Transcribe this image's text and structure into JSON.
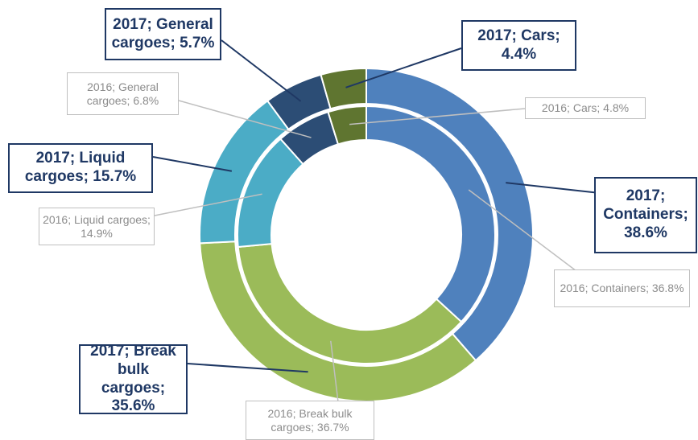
{
  "chart_data": {
    "type": "donut",
    "colors": [
      "#4f81bd",
      "#9bbb59",
      "#4bacc6",
      "#2c4d75",
      "#5f7530"
    ],
    "series": [
      {
        "values": [
          36.8,
          36.7,
          14.9,
          6.8,
          4.8
        ],
        "value_labels": [
          "2016; Containers; 36.8%",
          "2016; Break bulk cargoes; 36.7%",
          "2016; Liquid cargoes; 14.9%",
          "2016; General cargoes; 6.8%",
          "2016; Cars; 4.8%"
        ]
      },
      {
        "values": [
          38.6,
          35.6,
          15.7,
          5.7,
          4.4
        ],
        "value_labels": [
          "2017; Containers; 38.6%",
          "2017; Break bulk cargoes; 35.6%",
          "2017; Liquid cargoes; 15.7%",
          "2017; General cargoes; 5.7%",
          "2017; Cars; 4.4%"
        ]
      }
    ]
  }
}
